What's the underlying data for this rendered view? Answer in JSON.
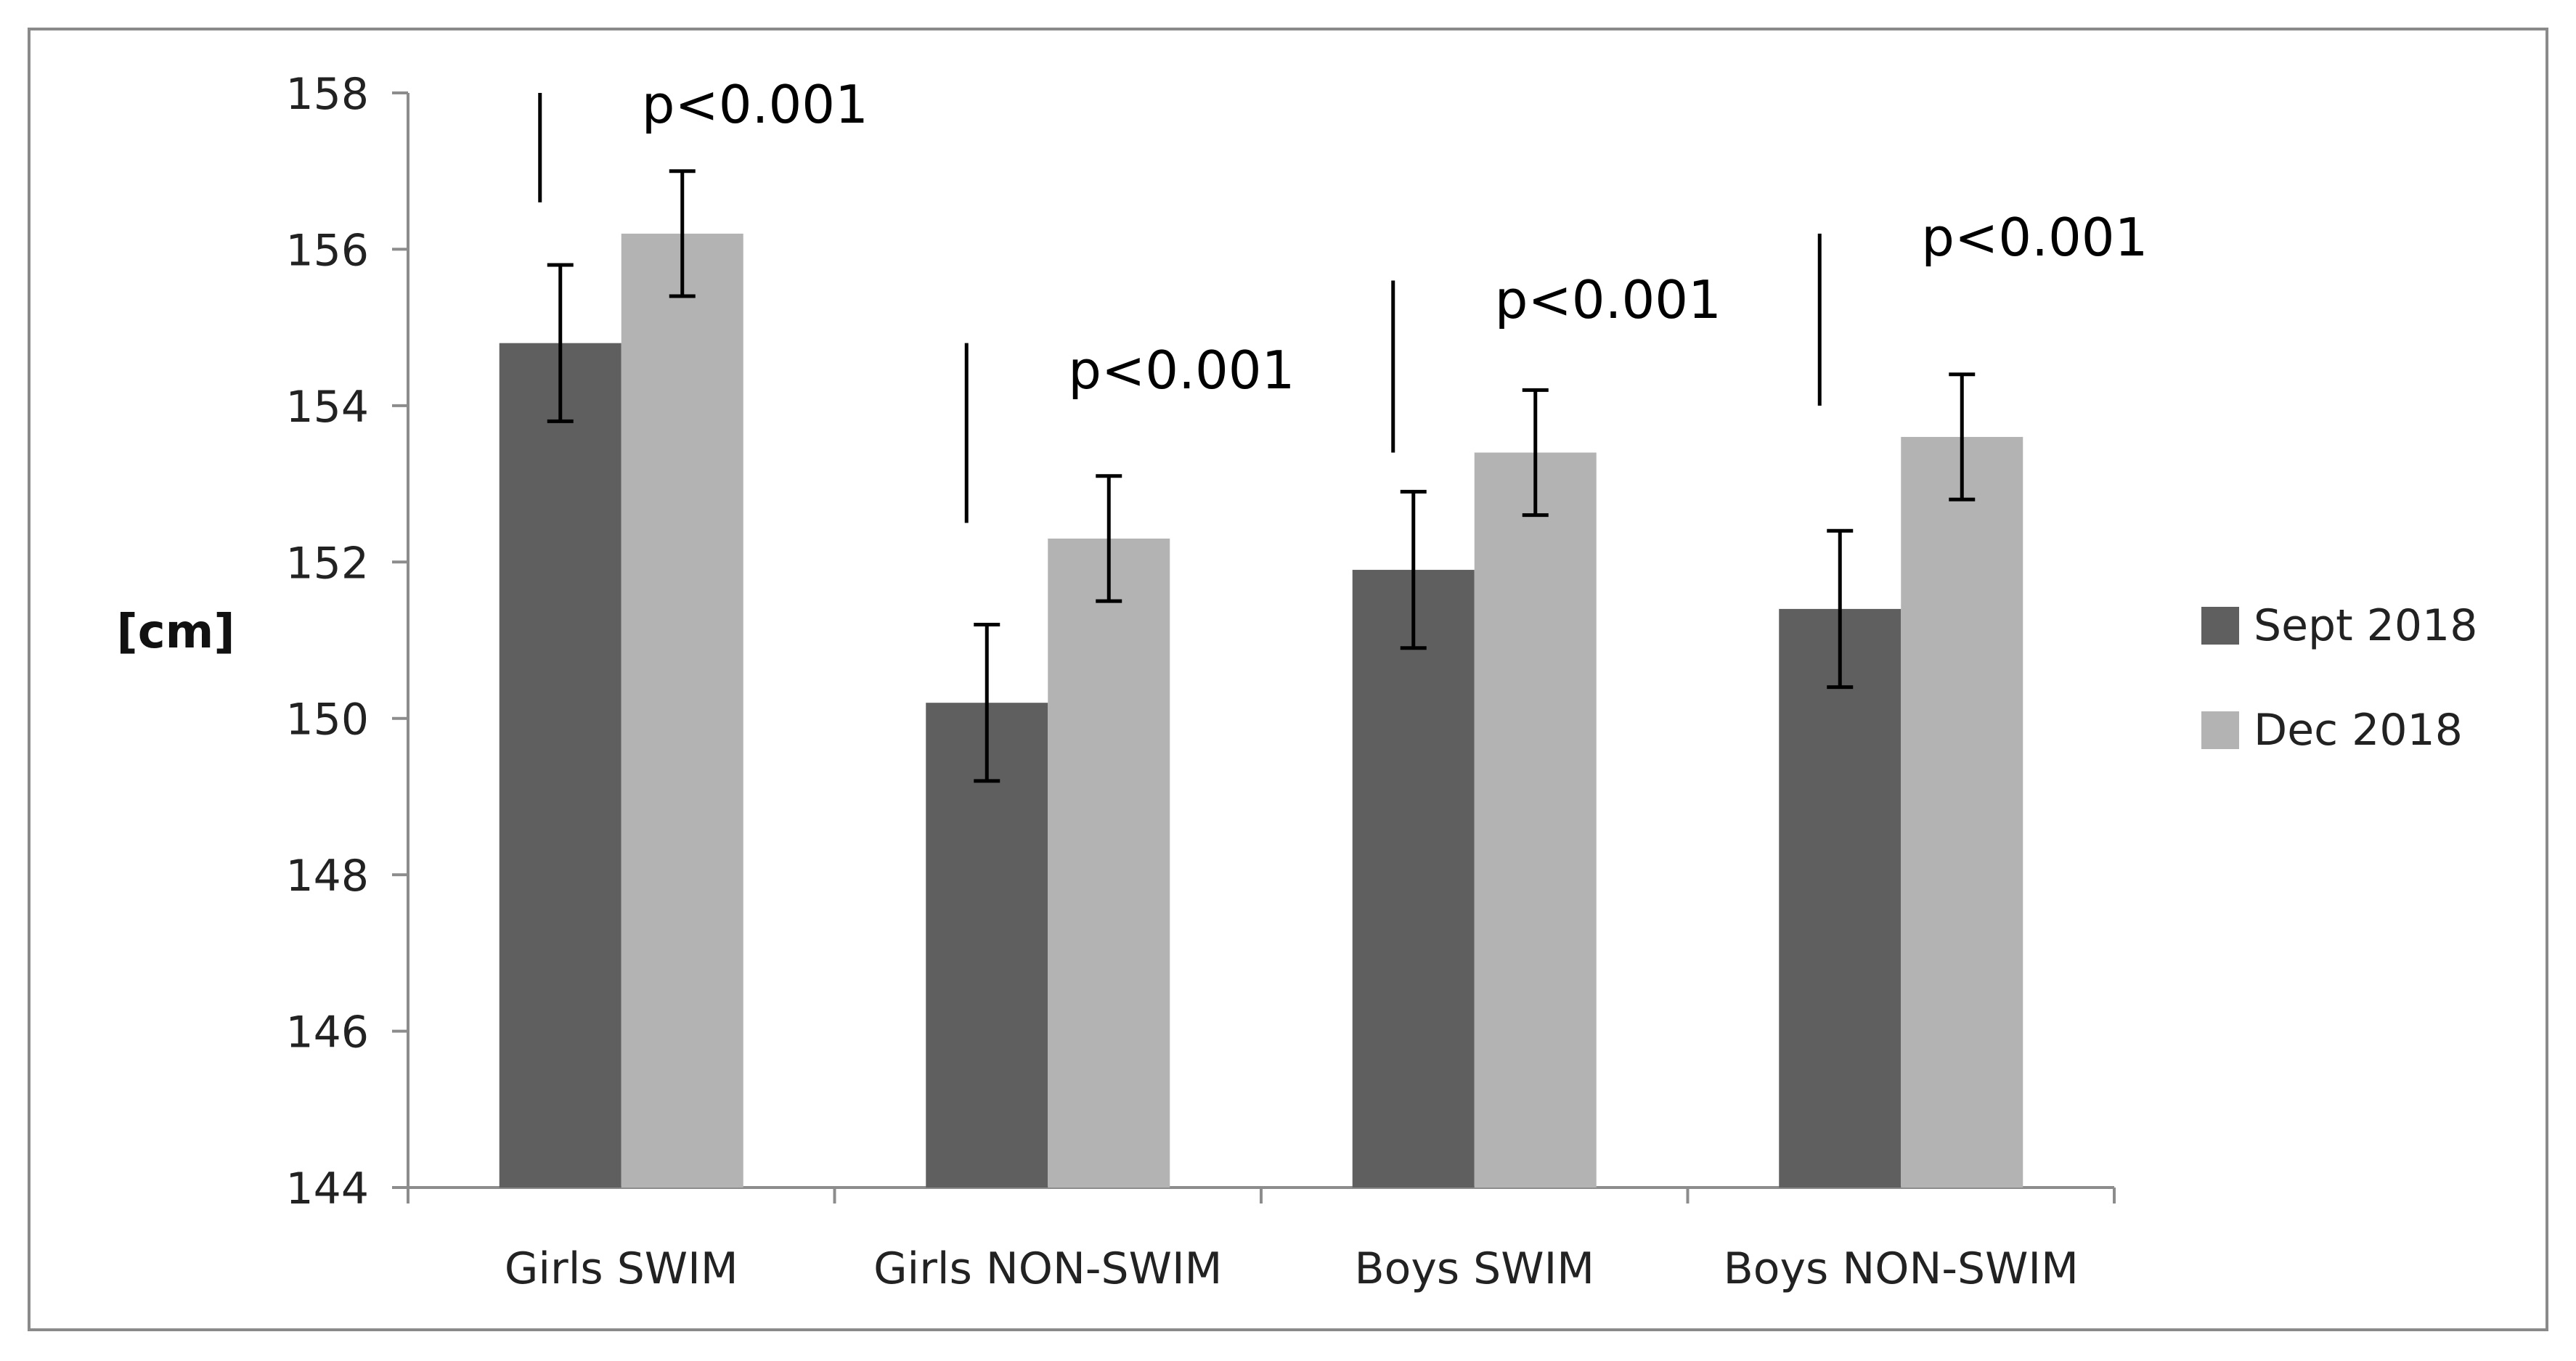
{
  "chart_data": {
    "type": "bar",
    "title": "",
    "xlabel": "",
    "ylabel": "[cm]",
    "ylim": [
      144,
      158
    ],
    "yticks": [
      144,
      146,
      148,
      150,
      152,
      154,
      156,
      158
    ],
    "grid": false,
    "legend_position": "right",
    "categories": [
      "Girls SWIM",
      "Girls NON-SWIM",
      "Boys SWIM",
      "Boys NON-SWIM"
    ],
    "series": [
      {
        "name": "Sept 2018",
        "color": "#5f5f5f",
        "values": [
          154.8,
          150.2,
          151.9,
          151.4
        ],
        "err_low": [
          153.8,
          149.2,
          150.9,
          150.4
        ],
        "err_high": [
          155.8,
          151.2,
          152.9,
          152.4
        ]
      },
      {
        "name": "Dec 2018",
        "color": "#b3b3b3",
        "values": [
          156.2,
          152.3,
          153.4,
          153.6
        ],
        "err_low": [
          155.4,
          151.5,
          152.6,
          152.8
        ],
        "err_high": [
          157.0,
          153.1,
          154.2,
          154.4
        ]
      }
    ],
    "annotations": [
      {
        "text": "p<0.001",
        "category_index": 0,
        "marker_from": 156.6,
        "marker_to": 158.0,
        "label_value": 157.9
      },
      {
        "text": "p<0.001",
        "category_index": 1,
        "marker_from": 152.5,
        "marker_to": 154.8,
        "label_value": 154.5
      },
      {
        "text": "p<0.001",
        "category_index": 2,
        "marker_from": 153.4,
        "marker_to": 155.6,
        "label_value": 155.4
      },
      {
        "text": "p<0.001",
        "category_index": 3,
        "marker_from": 154.0,
        "marker_to": 156.2,
        "label_value": 156.2
      }
    ]
  }
}
